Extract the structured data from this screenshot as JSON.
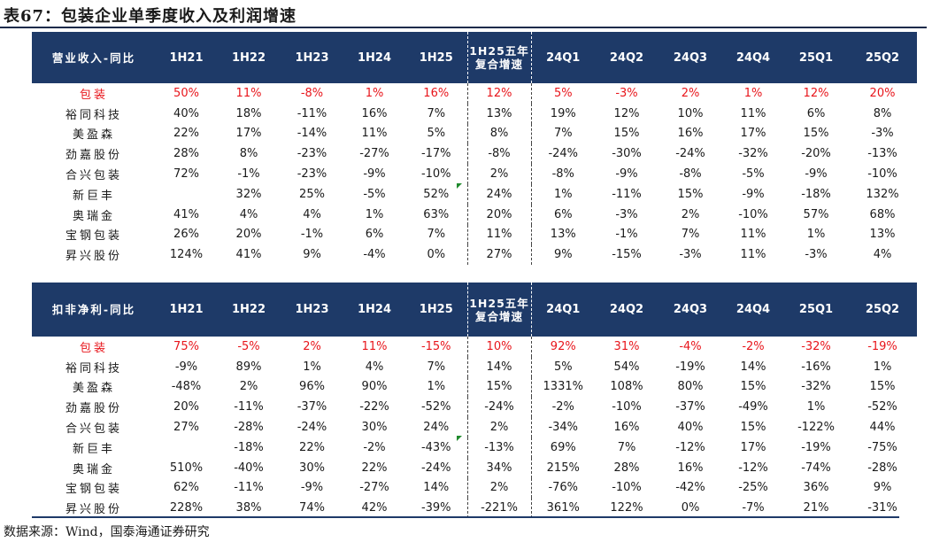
{
  "title": "表67：包装企业单季度收入及利润增速",
  "source": "数据来源：Wind，国泰海通证券研究",
  "columns": [
    "1H21",
    "1H22",
    "1H23",
    "1H24",
    "1H25",
    "1H25五年复合增速",
    "24Q1",
    "24Q2",
    "24Q3",
    "24Q4",
    "25Q1",
    "25Q2"
  ],
  "revenue": {
    "row_header": "营业收入-同比",
    "rows": [
      {
        "name": "包装",
        "values": [
          "50%",
          "11%",
          "-8%",
          "1%",
          "16%",
          "12%",
          "5%",
          "-3%",
          "2%",
          "1%",
          "12%",
          "20%"
        ]
      },
      {
        "name": "裕同科技",
        "values": [
          "40%",
          "18%",
          "-11%",
          "16%",
          "7%",
          "13%",
          "19%",
          "12%",
          "10%",
          "11%",
          "6%",
          "8%"
        ]
      },
      {
        "name": "美盈森",
        "values": [
          "22%",
          "17%",
          "-14%",
          "11%",
          "5%",
          "8%",
          "7%",
          "15%",
          "16%",
          "17%",
          "15%",
          "-3%"
        ]
      },
      {
        "name": "劲嘉股份",
        "values": [
          "28%",
          "8%",
          "-23%",
          "-27%",
          "-17%",
          "-8%",
          "-24%",
          "-30%",
          "-24%",
          "-32%",
          "-20%",
          "-13%"
        ]
      },
      {
        "name": "合兴包装",
        "values": [
          "72%",
          "-1%",
          "-23%",
          "-9%",
          "-10%",
          "2%",
          "-8%",
          "-9%",
          "-8%",
          "-5%",
          "-9%",
          "-10%"
        ]
      },
      {
        "name": "新巨丰",
        "values": [
          "",
          "32%",
          "25%",
          "-5%",
          "52%",
          "24%",
          "1%",
          "-11%",
          "15%",
          "-9%",
          "-18%",
          "132%"
        ]
      },
      {
        "name": "奥瑞金",
        "values": [
          "41%",
          "4%",
          "4%",
          "1%",
          "63%",
          "20%",
          "6%",
          "-3%",
          "2%",
          "-10%",
          "57%",
          "68%"
        ]
      },
      {
        "name": "宝钢包装",
        "values": [
          "26%",
          "20%",
          "-1%",
          "6%",
          "7%",
          "11%",
          "13%",
          "-1%",
          "7%",
          "11%",
          "1%",
          "13%"
        ]
      },
      {
        "name": "昇兴股份",
        "values": [
          "124%",
          "41%",
          "9%",
          "-4%",
          "0%",
          "27%",
          "9%",
          "-15%",
          "-3%",
          "11%",
          "-3%",
          "4%"
        ]
      }
    ]
  },
  "profit": {
    "row_header": "扣非净利-同比",
    "rows": [
      {
        "name": "包装",
        "values": [
          "75%",
          "-5%",
          "2%",
          "11%",
          "-15%",
          "10%",
          "92%",
          "31%",
          "-4%",
          "-2%",
          "-32%",
          "-19%"
        ]
      },
      {
        "name": "裕同科技",
        "values": [
          "-9%",
          "89%",
          "1%",
          "4%",
          "7%",
          "14%",
          "5%",
          "54%",
          "-19%",
          "14%",
          "-16%",
          "1%"
        ]
      },
      {
        "name": "美盈森",
        "values": [
          "-48%",
          "2%",
          "96%",
          "90%",
          "1%",
          "15%",
          "1331%",
          "108%",
          "80%",
          "15%",
          "-32%",
          "15%"
        ]
      },
      {
        "name": "劲嘉股份",
        "values": [
          "20%",
          "-11%",
          "-37%",
          "-22%",
          "-52%",
          "-24%",
          "-2%",
          "-10%",
          "-37%",
          "-49%",
          "1%",
          "-52%"
        ]
      },
      {
        "name": "合兴包装",
        "values": [
          "27%",
          "-28%",
          "-24%",
          "30%",
          "24%",
          "2%",
          "-34%",
          "16%",
          "40%",
          "15%",
          "-122%",
          "44%"
        ]
      },
      {
        "name": "新巨丰",
        "values": [
          "",
          "-18%",
          "22%",
          "-2%",
          "-43%",
          "-13%",
          "69%",
          "7%",
          "-12%",
          "17%",
          "-19%",
          "-75%"
        ]
      },
      {
        "name": "奥瑞金",
        "values": [
          "510%",
          "-40%",
          "30%",
          "22%",
          "-24%",
          "34%",
          "215%",
          "28%",
          "16%",
          "-12%",
          "-74%",
          "-28%"
        ]
      },
      {
        "name": "宝钢包装",
        "values": [
          "62%",
          "-11%",
          "-9%",
          "-27%",
          "14%",
          "2%",
          "-76%",
          "-10%",
          "-42%",
          "-25%",
          "36%",
          "9%"
        ]
      },
      {
        "name": "昇兴股份",
        "values": [
          "228%",
          "38%",
          "74%",
          "42%",
          "-39%",
          "-221%",
          "361%",
          "122%",
          "0%",
          "-7%",
          "21%",
          "-31%"
        ]
      }
    ]
  }
}
